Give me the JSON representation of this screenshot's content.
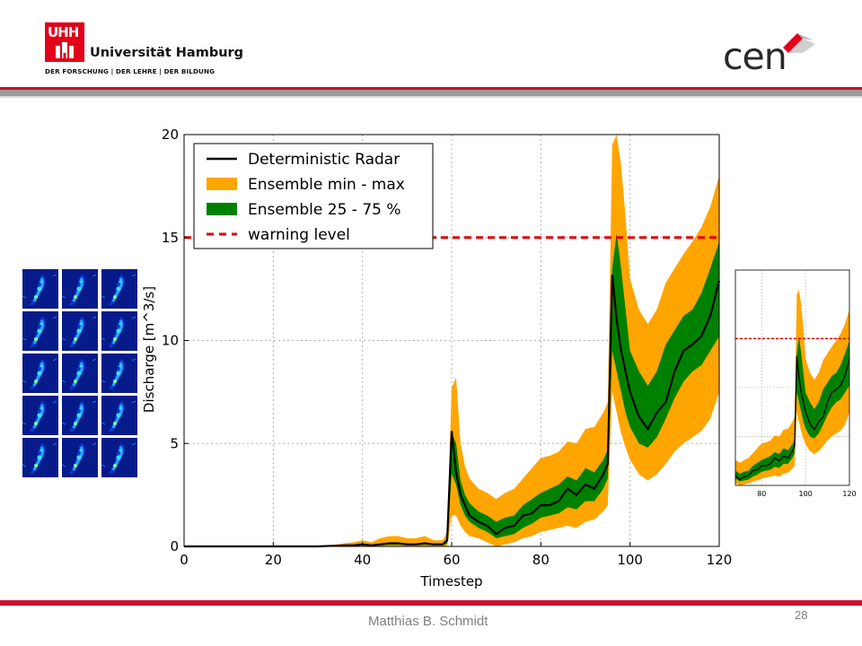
{
  "header": {
    "uni_mark": "UHH",
    "uni_name": "Universität Hamburg",
    "uni_tagline": "DER FORSCHUNG | DER LEHRE | DER BILDUNG",
    "cen_logo": "cen",
    "colors": {
      "brand_red": "#e2001a",
      "rule_gray": "#8a8a8a"
    }
  },
  "footer": {
    "author": "Matthias B. Schmidt",
    "page_number": "28"
  },
  "thumbnails": {
    "rows": 5,
    "cols": 3,
    "description_color": "#071a8a"
  },
  "chart_data": [
    {
      "type": "line",
      "xlabel": "Timestep",
      "ylabel": "Discharge [m^3/s]",
      "xlim": [
        0,
        120
      ],
      "ylim": [
        0,
        20
      ],
      "xticks": [
        0,
        20,
        40,
        60,
        80,
        100,
        120
      ],
      "yticks": [
        0,
        5,
        10,
        15,
        20
      ],
      "grid": true,
      "legend_position": "top-left",
      "legend": [
        {
          "label": "Deterministic Radar",
          "style": "line",
          "color": "#000000"
        },
        {
          "label": "Ensemble min - max",
          "style": "band",
          "color": "#ffa500"
        },
        {
          "label": "Ensemble 25 - 75 %",
          "style": "band",
          "color": "#008000"
        },
        {
          "label": "warning level",
          "style": "dashed",
          "color": "#e00000"
        }
      ],
      "warning_level": 15,
      "x": [
        0,
        2,
        4,
        6,
        8,
        10,
        12,
        14,
        16,
        18,
        20,
        22,
        24,
        26,
        28,
        30,
        32,
        34,
        36,
        38,
        40,
        42,
        44,
        46,
        48,
        50,
        52,
        54,
        56,
        58,
        59,
        60,
        61,
        62,
        63,
        64,
        66,
        68,
        70,
        72,
        74,
        76,
        78,
        80,
        82,
        84,
        86,
        88,
        90,
        92,
        94,
        95,
        96,
        97,
        98,
        99,
        100,
        102,
        104,
        106,
        108,
        110,
        112,
        114,
        116,
        118,
        120
      ],
      "deterministic": [
        0,
        0,
        0,
        0,
        0,
        0,
        0,
        0,
        0,
        0,
        0,
        0,
        0,
        0,
        0,
        0,
        0.02,
        0.03,
        0.05,
        0.05,
        0.1,
        0.05,
        0.1,
        0.15,
        0.15,
        0.1,
        0.1,
        0.15,
        0.1,
        0.1,
        0.3,
        5.6,
        3.6,
        2.5,
        2.0,
        1.5,
        1.2,
        1.0,
        0.6,
        0.9,
        1.0,
        1.5,
        1.6,
        2.0,
        2.0,
        2.2,
        2.8,
        2.5,
        3.0,
        2.8,
        3.5,
        4.0,
        13.2,
        11.0,
        9.5,
        8.5,
        7.5,
        6.3,
        5.7,
        6.5,
        7.0,
        8.5,
        9.5,
        9.8,
        10.2,
        11.2,
        12.9
      ],
      "q25": [
        0,
        0,
        0,
        0,
        0,
        0,
        0,
        0,
        0,
        0,
        0,
        0,
        0,
        0,
        0,
        0,
        0.01,
        0.02,
        0.03,
        0.03,
        0.05,
        0.03,
        0.05,
        0.08,
        0.08,
        0.05,
        0.05,
        0.08,
        0.05,
        0.05,
        0.15,
        3.5,
        3.0,
        2.0,
        1.5,
        1.2,
        0.9,
        0.7,
        0.4,
        0.5,
        0.6,
        0.9,
        1.1,
        1.4,
        1.5,
        1.6,
        1.9,
        1.8,
        2.2,
        2.2,
        2.8,
        3.3,
        9.5,
        8.5,
        7.5,
        6.5,
        5.8,
        5.0,
        4.8,
        5.3,
        6.2,
        7.2,
        8.0,
        8.5,
        8.8,
        9.5,
        10.2
      ],
      "q75": [
        0,
        0,
        0,
        0,
        0,
        0,
        0,
        0,
        0,
        0,
        0,
        0,
        0,
        0,
        0,
        0,
        0.03,
        0.04,
        0.07,
        0.07,
        0.13,
        0.07,
        0.13,
        0.2,
        0.2,
        0.13,
        0.13,
        0.2,
        0.13,
        0.13,
        0.4,
        5.5,
        5.0,
        3.2,
        2.5,
        2.1,
        1.7,
        1.5,
        1.2,
        1.4,
        1.5,
        2.0,
        2.3,
        2.6,
        2.8,
        3.0,
        3.4,
        3.2,
        3.8,
        3.6,
        4.2,
        4.7,
        13.5,
        15.2,
        13.5,
        11.5,
        9.5,
        8.5,
        7.8,
        8.5,
        9.8,
        10.5,
        11.2,
        11.5,
        12.3,
        13.5,
        14.8
      ],
      "min": [
        0,
        0,
        0,
        0,
        0,
        0,
        0,
        0,
        0,
        0,
        0,
        0,
        0,
        0,
        0,
        0,
        0,
        0,
        0,
        0,
        0,
        0,
        0,
        0,
        0,
        0,
        0,
        0,
        0,
        0,
        0,
        1.5,
        1.5,
        1.0,
        0.7,
        0.5,
        0.4,
        0.2,
        0.0,
        0.1,
        0.2,
        0.4,
        0.5,
        0.7,
        0.8,
        0.9,
        1.0,
        0.9,
        1.2,
        1.3,
        1.7,
        2.0,
        7.5,
        6.5,
        5.5,
        4.8,
        4.2,
        3.5,
        3.2,
        3.5,
        4.0,
        4.6,
        5.0,
        5.3,
        5.6,
        6.2,
        7.5
      ],
      "max": [
        0,
        0,
        0,
        0,
        0,
        0,
        0,
        0,
        0,
        0,
        0,
        0,
        0,
        0,
        0,
        0,
        0.05,
        0.1,
        0.15,
        0.2,
        0.3,
        0.2,
        0.4,
        0.5,
        0.5,
        0.4,
        0.4,
        0.5,
        0.3,
        0.3,
        0.7,
        7.7,
        8.2,
        5.0,
        3.9,
        3.3,
        2.8,
        2.6,
        2.3,
        2.6,
        2.8,
        3.3,
        3.8,
        4.3,
        4.4,
        4.6,
        5.1,
        5.0,
        5.7,
        5.8,
        6.5,
        7.0,
        19.5,
        20.0,
        18.5,
        16.0,
        13.0,
        11.5,
        10.8,
        11.5,
        12.8,
        13.5,
        14.2,
        14.8,
        15.5,
        16.5,
        18.0
      ]
    },
    {
      "type": "line",
      "xticks": [
        80,
        100,
        120
      ],
      "xlim": [
        68,
        120
      ],
      "grid": true,
      "note_ref": "zoomed copy of main chart"
    }
  ]
}
